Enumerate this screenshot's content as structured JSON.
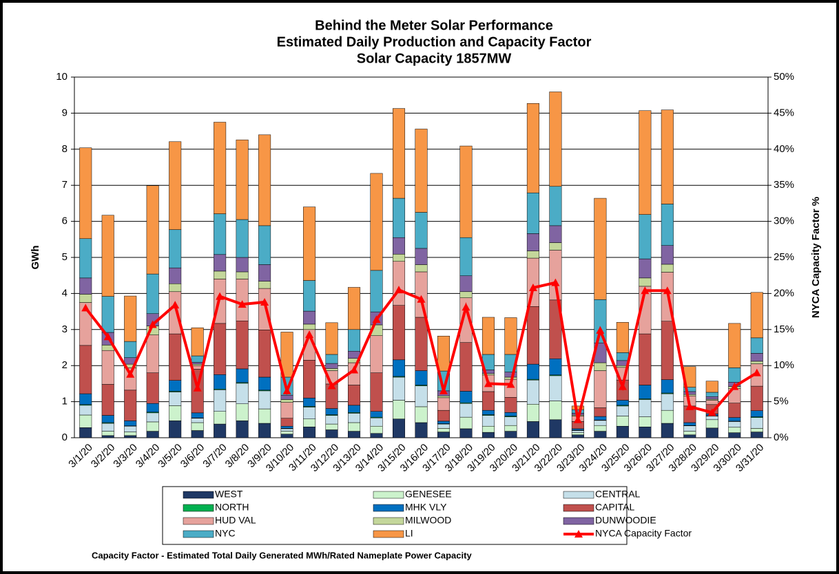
{
  "chart_data": {
    "type": "bar",
    "stacked": true,
    "title": [
      "Behind the Meter Solar Performance",
      "Estimated Daily Production and Capacity Factor",
      "Solar Capacity 1857MW"
    ],
    "ylabel": "GWh",
    "y2label": "NYCA Capacity Factor %",
    "footnote": "Capacity Factor  - Estimated Total Daily Generated MWh/Rated Nameplate Power Capacity",
    "categories": [
      "3/1/20",
      "3/2/20",
      "3/3/20",
      "3/4/20",
      "3/5/20",
      "3/6/20",
      "3/7/20",
      "3/8/20",
      "3/9/20",
      "3/10/20",
      "3/11/20",
      "3/12/20",
      "3/13/20",
      "3/14/20",
      "3/15/20",
      "3/16/20",
      "3/17/20",
      "3/18/20",
      "3/19/20",
      "3/20/20",
      "3/21/20",
      "3/22/20",
      "3/23/20",
      "3/24/20",
      "3/25/20",
      "3/26/20",
      "3/27/20",
      "3/28/20",
      "3/29/20",
      "3/30/20",
      "3/31/20"
    ],
    "ylim": [
      0,
      10
    ],
    "yticks": [
      0,
      1,
      2,
      3,
      4,
      5,
      6,
      7,
      8,
      9,
      10
    ],
    "y2lim": [
      0,
      50
    ],
    "y2ticks": [
      {
        "value": 0,
        "label": "0%"
      },
      {
        "value": 5,
        "label": "5%"
      },
      {
        "value": 10,
        "label": "10%"
      },
      {
        "value": 15,
        "label": "15%"
      },
      {
        "value": 20,
        "label": "20%"
      },
      {
        "value": 25,
        "label": "25%"
      },
      {
        "value": 30,
        "label": "30%"
      },
      {
        "value": 35,
        "label": "35%"
      },
      {
        "value": 40,
        "label": "40%"
      },
      {
        "value": 45,
        "label": "45%"
      },
      {
        "value": 50,
        "label": "50%"
      }
    ],
    "grid": true,
    "series": [
      {
        "name": "WEST",
        "color": "#1f3864",
        "values": [
          0.28,
          0.06,
          0.06,
          0.18,
          0.47,
          0.2,
          0.38,
          0.47,
          0.4,
          0.1,
          0.3,
          0.22,
          0.18,
          0.12,
          0.52,
          0.42,
          0.16,
          0.25,
          0.15,
          0.18,
          0.45,
          0.5,
          0.08,
          0.18,
          0.32,
          0.3,
          0.4,
          0.08,
          0.27,
          0.14,
          0.16
        ]
      },
      {
        "name": "GENESEE",
        "color": "#ccf2cc",
        "values": [
          0.35,
          0.12,
          0.1,
          0.26,
          0.42,
          0.22,
          0.35,
          0.47,
          0.4,
          0.08,
          0.22,
          0.16,
          0.24,
          0.2,
          0.52,
          0.44,
          0.1,
          0.32,
          0.17,
          0.16,
          0.48,
          0.52,
          0.06,
          0.16,
          0.28,
          0.28,
          0.36,
          0.1,
          0.23,
          0.15,
          0.1
        ]
      },
      {
        "name": "CENTRAL",
        "color": "#c5dfe9",
        "values": [
          0.27,
          0.22,
          0.16,
          0.25,
          0.38,
          0.12,
          0.6,
          0.57,
          0.5,
          0.07,
          0.33,
          0.24,
          0.26,
          0.23,
          0.64,
          0.58,
          0.12,
          0.38,
          0.3,
          0.24,
          0.67,
          0.7,
          0.06,
          0.14,
          0.28,
          0.48,
          0.46,
          0.15,
          0.1,
          0.16,
          0.3
        ]
      },
      {
        "name": "NORTH",
        "color": "#00b050",
        "values": [
          0.02,
          0.02,
          0.01,
          0.02,
          0.02,
          0.01,
          0.02,
          0.02,
          0.02,
          0.01,
          0.02,
          0.02,
          0.02,
          0.02,
          0.02,
          0.02,
          0.01,
          0.02,
          0.02,
          0.02,
          0.02,
          0.02,
          0.01,
          0.01,
          0.02,
          0.02,
          0.02,
          0.01,
          0.01,
          0.01,
          0.02
        ]
      },
      {
        "name": "MHK VLY",
        "color": "#0070c0",
        "values": [
          0.3,
          0.2,
          0.14,
          0.24,
          0.3,
          0.14,
          0.4,
          0.38,
          0.36,
          0.06,
          0.23,
          0.17,
          0.2,
          0.16,
          0.46,
          0.4,
          0.07,
          0.32,
          0.12,
          0.1,
          0.42,
          0.45,
          0.04,
          0.1,
          0.14,
          0.38,
          0.37,
          0.08,
          0.05,
          0.1,
          0.17
        ]
      },
      {
        "name": "CAPITAL",
        "color": "#c0504d",
        "values": [
          1.34,
          0.86,
          0.85,
          0.85,
          1.29,
          1.21,
          1.42,
          1.33,
          1.31,
          0.22,
          1.05,
          0.68,
          0.56,
          1.07,
          1.51,
          1.48,
          0.3,
          1.35,
          0.52,
          0.42,
          1.6,
          1.63,
          0.2,
          0.24,
          0.56,
          1.42,
          1.62,
          0.46,
          0.26,
          0.4,
          0.68
        ]
      },
      {
        "name": "HUD VAL",
        "color": "#e6a29c",
        "values": [
          1.19,
          0.94,
          0.62,
          1.05,
          1.17,
          0.1,
          1.23,
          1.16,
          1.15,
          0.44,
          0.85,
          0.37,
          0.62,
          1.03,
          1.22,
          1.26,
          0.35,
          1.24,
          0.46,
          0.5,
          1.34,
          1.38,
          0.15,
          1.03,
          0.35,
          1.32,
          1.36,
          0.28,
          0.12,
          0.4,
          0.62
        ]
      },
      {
        "name": "MILWOOD",
        "color": "#c4d79b",
        "values": [
          0.23,
          0.15,
          0.1,
          0.25,
          0.22,
          0.04,
          0.22,
          0.2,
          0.2,
          0.08,
          0.15,
          0.06,
          0.12,
          0.3,
          0.2,
          0.2,
          0.05,
          0.17,
          0.04,
          0.06,
          0.2,
          0.21,
          0.03,
          0.22,
          0.05,
          0.23,
          0.22,
          0.04,
          0.03,
          0.06,
          0.07
        ]
      },
      {
        "name": "DUNWOODIE",
        "color": "#8064a2",
        "values": [
          0.45,
          0.35,
          0.18,
          0.34,
          0.44,
          0.05,
          0.46,
          0.4,
          0.46,
          0.12,
          0.36,
          0.14,
          0.2,
          0.36,
          0.46,
          0.45,
          0.14,
          0.44,
          0.1,
          0.14,
          0.48,
          0.47,
          0.05,
          0.55,
          0.14,
          0.53,
          0.52,
          0.08,
          0.07,
          0.12,
          0.22
        ]
      },
      {
        "name": "NYC",
        "color": "#4bacc6",
        "values": [
          1.09,
          1.0,
          0.45,
          1.1,
          1.06,
          0.18,
          1.13,
          1.05,
          1.08,
          0.5,
          0.85,
          0.25,
          0.6,
          1.15,
          1.09,
          1.0,
          0.55,
          1.06,
          0.43,
          0.49,
          1.13,
          1.09,
          0.1,
          1.2,
          0.22,
          1.23,
          1.15,
          0.12,
          0.12,
          0.4,
          0.43
        ]
      },
      {
        "name": "LI",
        "color": "#f79646",
        "values": [
          2.52,
          2.25,
          1.26,
          2.45,
          2.44,
          0.78,
          2.54,
          2.21,
          2.52,
          1.25,
          2.04,
          0.88,
          1.17,
          2.69,
          2.49,
          2.31,
          0.97,
          2.54,
          1.03,
          1.02,
          2.48,
          2.62,
          0.1,
          2.81,
          0.84,
          2.88,
          2.61,
          0.57,
          0.31,
          1.23,
          1.26
        ]
      },
      {
        "name": "NYCA Capacity Factor",
        "color": "#ff0000",
        "type": "line",
        "axis": "y2",
        "values": [
          18,
          14,
          8.8,
          15.7,
          18.4,
          6.9,
          19.6,
          18.5,
          18.8,
          6.5,
          14.3,
          7.2,
          9.4,
          16.4,
          20.5,
          19.2,
          6.5,
          18.1,
          7.5,
          7.4,
          20.8,
          21.5,
          2.5,
          14.9,
          7.1,
          20.4,
          20.4,
          4.3,
          3.5,
          7.1,
          9
        ]
      }
    ]
  }
}
